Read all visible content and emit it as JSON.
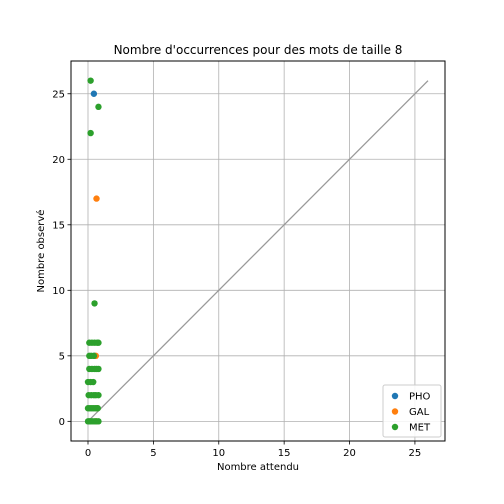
{
  "chart_data": {
    "type": "scatter",
    "title": "Nombre d'occurrences pour des mots de taille 8",
    "xlabel": "Nombre attendu",
    "ylabel": "Nombre observé",
    "xlim": [
      -1.3,
      27.3
    ],
    "ylim": [
      -1.5,
      27.5
    ],
    "xticks": [
      0,
      5,
      10,
      15,
      20,
      25
    ],
    "yticks": [
      0,
      5,
      10,
      15,
      20,
      25
    ],
    "grid": true,
    "legend_position": "bottom-right",
    "reference_line": {
      "x": [
        0,
        26
      ],
      "y": [
        0,
        26
      ],
      "color": "#999999"
    },
    "series": [
      {
        "name": "PHO",
        "color": "#1f77b4",
        "points": [
          [
            0.45,
            25
          ],
          [
            0.5,
            5
          ]
        ]
      },
      {
        "name": "GAL",
        "color": "#ff7f0e",
        "points": [
          [
            0.65,
            17
          ],
          [
            0.6,
            5
          ],
          [
            0.7,
            1
          ],
          [
            0.6,
            0
          ]
        ]
      },
      {
        "name": "MET",
        "color": "#2ca02c",
        "points": [
          [
            0.2,
            26
          ],
          [
            0.8,
            24
          ],
          [
            0.2,
            22
          ],
          [
            0.5,
            9
          ],
          [
            0.1,
            6
          ],
          [
            0.3,
            6
          ],
          [
            0.5,
            6
          ],
          [
            0.7,
            6
          ],
          [
            0.8,
            6
          ],
          [
            0.1,
            5
          ],
          [
            0.25,
            5
          ],
          [
            0.45,
            5
          ],
          [
            0.1,
            4
          ],
          [
            0.3,
            4
          ],
          [
            0.5,
            4
          ],
          [
            0.65,
            4
          ],
          [
            0.8,
            4
          ],
          [
            0.0,
            3
          ],
          [
            0.2,
            3
          ],
          [
            0.4,
            3
          ],
          [
            0.05,
            2
          ],
          [
            0.25,
            2
          ],
          [
            0.45,
            2
          ],
          [
            0.6,
            2
          ],
          [
            0.8,
            2
          ],
          [
            0.0,
            1
          ],
          [
            0.15,
            1
          ],
          [
            0.3,
            1
          ],
          [
            0.45,
            1
          ],
          [
            0.6,
            1
          ],
          [
            0.75,
            1
          ],
          [
            0.0,
            0
          ],
          [
            0.1,
            0
          ],
          [
            0.2,
            0
          ],
          [
            0.35,
            0
          ],
          [
            0.5,
            0
          ],
          [
            0.65,
            0
          ],
          [
            0.8,
            0
          ]
        ]
      }
    ]
  }
}
